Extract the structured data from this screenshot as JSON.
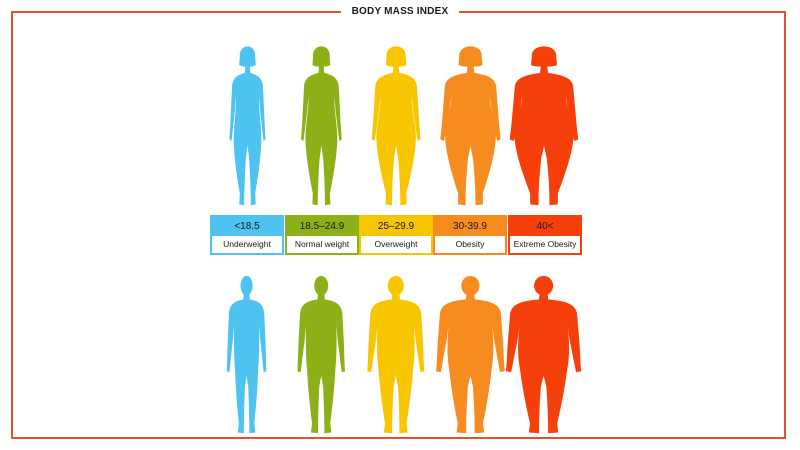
{
  "title": "BODY MASS INDEX",
  "accent_color": "#e2532c",
  "categories": [
    {
      "range": "<18.5",
      "label": "Underweight",
      "color": "#4fc3f0"
    },
    {
      "range": "18.5–24.9",
      "label": "Normal weight",
      "color": "#8db019"
    },
    {
      "range": "25–29.9",
      "label": "Overweight",
      "color": "#f7c600"
    },
    {
      "range": "30-39.9",
      "label": "Obesity",
      "color": "#f68c1f"
    },
    {
      "range": "40<",
      "label": "Extreme Obesity",
      "color": "#f5400c"
    }
  ],
  "figures": {
    "female_row": [
      "female-underweight-silhouette",
      "female-normal-silhouette",
      "female-overweight-silhouette",
      "female-obese-silhouette",
      "female-extreme-obese-silhouette"
    ],
    "male_row": [
      "male-underweight-silhouette",
      "male-normal-silhouette",
      "male-overweight-silhouette",
      "male-obese-silhouette",
      "male-extreme-obese-silhouette"
    ]
  }
}
